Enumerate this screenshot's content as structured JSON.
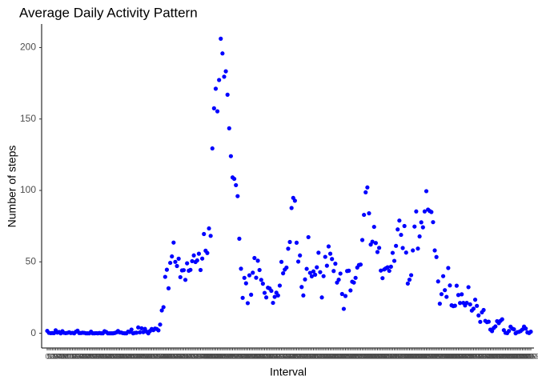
{
  "chart_data": {
    "type": "scatter",
    "title": "Average Daily Activity Pattern",
    "x_label": "Interval",
    "y_label": "Number of steps",
    "color": "#0000ff",
    "categories": [
      "0",
      "5",
      "10",
      "15",
      "20",
      "25",
      "30",
      "35",
      "40",
      "45",
      "50",
      "55",
      "100",
      "105",
      "110",
      "115",
      "120",
      "125",
      "130",
      "135",
      "140",
      "145",
      "150",
      "155",
      "200",
      "205",
      "210",
      "215",
      "220",
      "225",
      "230",
      "235",
      "240",
      "245",
      "250",
      "255",
      "300",
      "305",
      "310",
      "315",
      "320",
      "325",
      "330",
      "335",
      "340",
      "345",
      "350",
      "355",
      "400",
      "405",
      "410",
      "415",
      "420",
      "425",
      "430",
      "435",
      "440",
      "445",
      "450",
      "455",
      "500",
      "505",
      "510",
      "515",
      "520",
      "525",
      "530",
      "535",
      "540",
      "545",
      "550",
      "555",
      "600",
      "605",
      "610",
      "615",
      "620",
      "625",
      "630",
      "635",
      "640",
      "645",
      "650",
      "655",
      "700",
      "705",
      "710",
      "715",
      "720",
      "725",
      "730",
      "735",
      "740",
      "745",
      "750",
      "755",
      "800",
      "805",
      "810",
      "815",
      "820",
      "825",
      "830",
      "835",
      "840",
      "845",
      "850",
      "855",
      "900",
      "905",
      "910",
      "915",
      "920",
      "925",
      "930",
      "935",
      "940",
      "945",
      "950",
      "955",
      "1000",
      "1005",
      "1010",
      "1015",
      "1020",
      "1025",
      "1030",
      "1035",
      "1040",
      "1045",
      "1050",
      "1055",
      "1100",
      "1105",
      "1110",
      "1115",
      "1120",
      "1125",
      "1130",
      "1135",
      "1140",
      "1145",
      "1150",
      "1155",
      "1200",
      "1205",
      "1210",
      "1215",
      "1220",
      "1225",
      "1230",
      "1235",
      "1240",
      "1245",
      "1250",
      "1255",
      "1300",
      "1305",
      "1310",
      "1315",
      "1320",
      "1325",
      "1330",
      "1335",
      "1340",
      "1345",
      "1350",
      "1355",
      "1400",
      "1405",
      "1410",
      "1415",
      "1420",
      "1425",
      "1430",
      "1435",
      "1440",
      "1445",
      "1450",
      "1455",
      "1500",
      "1505",
      "1510",
      "1515",
      "1520",
      "1525",
      "1530",
      "1535",
      "1540",
      "1545",
      "1550",
      "1555",
      "1600",
      "1605",
      "1610",
      "1615",
      "1620",
      "1625",
      "1630",
      "1635",
      "1640",
      "1645",
      "1650",
      "1655",
      "1700",
      "1705",
      "1710",
      "1715",
      "1720",
      "1725",
      "1730",
      "1735",
      "1740",
      "1745",
      "1750",
      "1755",
      "1800",
      "1805",
      "1810",
      "1815",
      "1820",
      "1825",
      "1830",
      "1835",
      "1840",
      "1845",
      "1850",
      "1855",
      "1900",
      "1905",
      "1910",
      "1915",
      "1920",
      "1925",
      "1930",
      "1935",
      "1940",
      "1945",
      "1950",
      "1955",
      "2000",
      "2005",
      "2010",
      "2015",
      "2020",
      "2025",
      "2030",
      "2035",
      "2040",
      "2045",
      "2050",
      "2055",
      "2100",
      "2105",
      "2110",
      "2115",
      "2120",
      "2125",
      "2130",
      "2135",
      "2140",
      "2145",
      "2150",
      "2155",
      "2200",
      "2205",
      "2210",
      "2215",
      "2220",
      "2225",
      "2230",
      "2235",
      "2240",
      "2245",
      "2250",
      "2255",
      "2300",
      "2305",
      "2310",
      "2315",
      "2320",
      "2325",
      "2330",
      "2335",
      "2340",
      "2345",
      "2350",
      "2355"
    ],
    "values": [
      1.7,
      0.3,
      0.1,
      0.2,
      0.1,
      2.1,
      0.5,
      0.9,
      0,
      1.5,
      0.3,
      0.1,
      0.3,
      0.7,
      0.2,
      0.3,
      0,
      1.1,
      1.8,
      0.2,
      0.2,
      0.4,
      0.3,
      0,
      0,
      0,
      1.1,
      0,
      0,
      0.1,
      0,
      0.2,
      0,
      0,
      1.5,
      0.9,
      0,
      0,
      0,
      0,
      0.2,
      0.6,
      1.6,
      0.6,
      0.5,
      0.1,
      0,
      0,
      1.2,
      0.9,
      2.6,
      0,
      0.3,
      0.4,
      4.1,
      0.7,
      3.5,
      0.8,
      3.1,
      1.1,
      0,
      1.6,
      3,
      2.2,
      3.3,
      3,
      2.1,
      6.1,
      16,
      18.3,
      39.5,
      44.5,
      31.5,
      49.3,
      53.8,
      63.5,
      50,
      47.1,
      52.2,
      39.3,
      44,
      44.2,
      37.4,
      49,
      43.8,
      44.4,
      50.5,
      54.5,
      49.9,
      51,
      55.7,
      44.3,
      52.3,
      69.5,
      57.8,
      56.2,
      73.4,
      68.2,
      129.4,
      157.5,
      171.2,
      155.4,
      177.3,
      206.2,
      195.9,
      179.6,
      183.4,
      167,
      143.5,
      124,
      109.1,
      108.1,
      103.7,
      96,
      66.2,
      45.2,
      24.8,
      38.8,
      35,
      21.1,
      40.6,
      27,
      42.4,
      52.7,
      38.9,
      50.8,
      44.3,
      37.4,
      34.7,
      28.3,
      25.1,
      31.9,
      31.4,
      29.7,
      21.3,
      25.5,
      28.4,
      26.5,
      33.4,
      50,
      42,
      44.6,
      46,
      59.2,
      63.9,
      87.7,
      94.8,
      92.8,
      63.4,
      50.2,
      54.5,
      32.4,
      26.5,
      37.7,
      45.1,
      67.3,
      42.3,
      39.9,
      43.3,
      41,
      46.2,
      56.4,
      42.8,
      25.1,
      40,
      53.5,
      47.3,
      60.8,
      55.7,
      52,
      43.6,
      48.7,
      35.5,
      37.5,
      41.8,
      27.5,
      17.1,
      26.1,
      43.6,
      43.8,
      30,
      36.1,
      35.5,
      38.8,
      46,
      47.8,
      48.1,
      65.3,
      82.9,
      98.7,
      102.1,
      84,
      62.1,
      64.1,
      74.5,
      63.2,
      56.9,
      59.8,
      43.9,
      38.6,
      44.7,
      45.5,
      46.2,
      43.7,
      46.6,
      56.3,
      50.7,
      61.2,
      72.7,
      78.9,
      68.9,
      59.7,
      75.1,
      56.5,
      34.8,
      37.5,
      40.7,
      58,
      74.7,
      85.3,
      59.3,
      67.8,
      77.7,
      74.2,
      85.3,
      99.5,
      86.6,
      85.6,
      84.9,
      77.8,
      58,
      53.4,
      36.3,
      20.7,
      27.4,
      40,
      30.2,
      25.5,
      45.7,
      33.5,
      19.6,
      19,
      19.3,
      33.3,
      26.8,
      21.2,
      27.3,
      21.3,
      19.5,
      21.3,
      32.3,
      20.2,
      15.9,
      17.2,
      23.5,
      19.2,
      12.5,
      8,
      14.7,
      16.3,
      8.7,
      7.8,
      8.1,
      2.6,
      1.5,
      3.7,
      4.8,
      8.5,
      7.1,
      8.7,
      9.8,
      2.2,
      0.3,
      0.1,
      1.6,
      4.6,
      3.3,
      2.8,
      0,
      0.8,
      1,
      1.6,
      2.6,
      4.7,
      3.3,
      0.6,
      0.2,
      1.1
    ],
    "ylim": [
      -10.3,
      216.5
    ],
    "yticks": [
      0,
      50,
      100,
      150,
      200
    ],
    "grid": false
  }
}
